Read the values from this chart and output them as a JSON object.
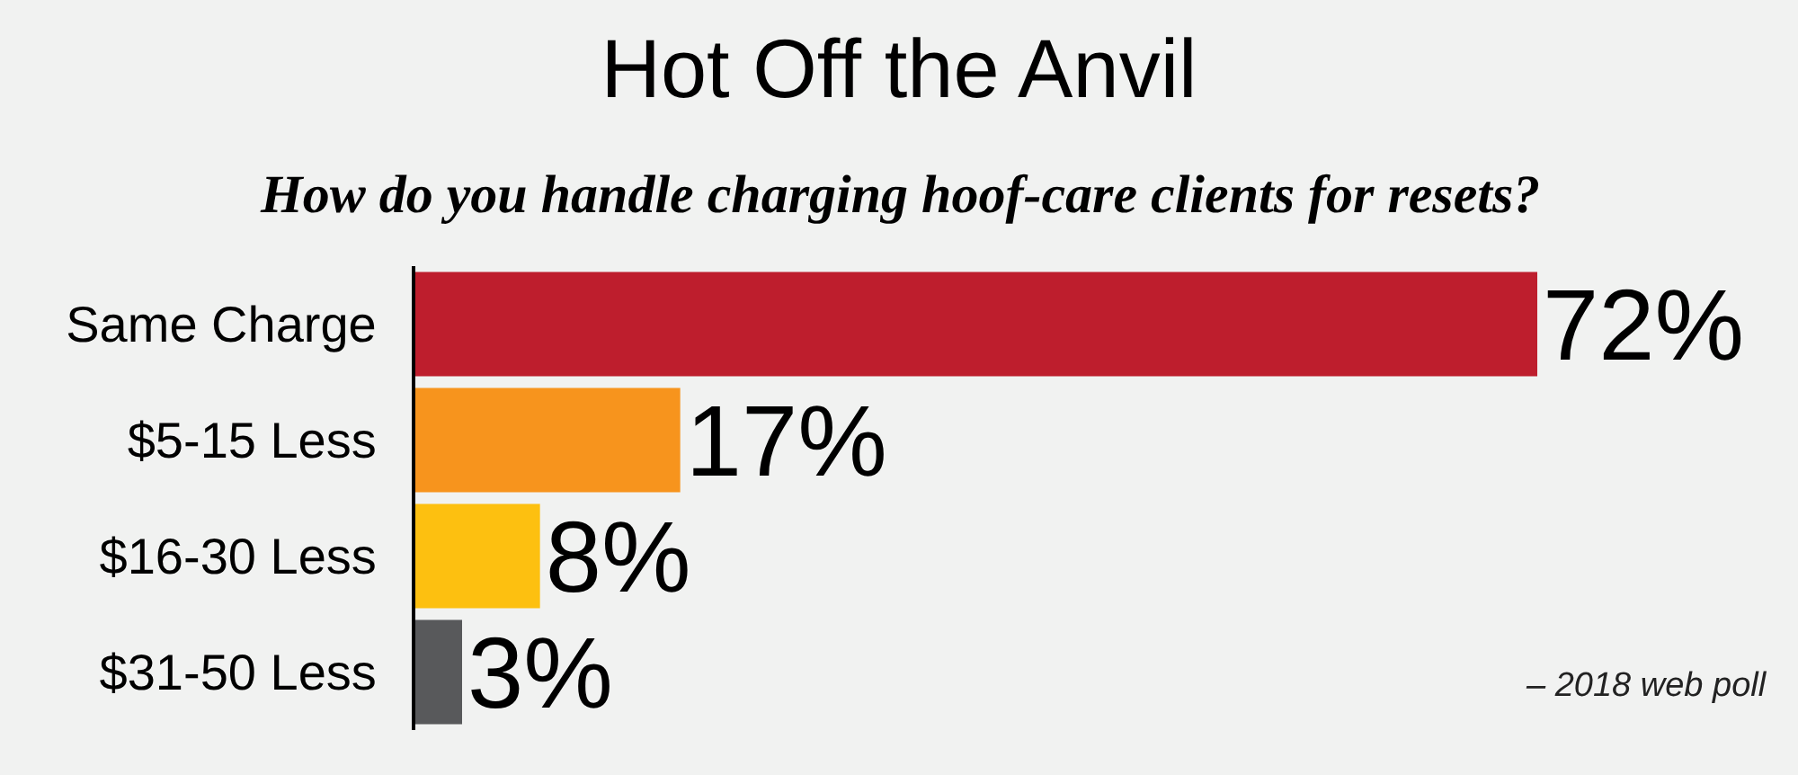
{
  "chart_data": {
    "type": "bar",
    "orientation": "horizontal",
    "title": "Hot Off the Anvil",
    "subtitle": "How do you handle charging hoof-care clients for resets?",
    "categories": [
      "Same Charge",
      "$5-15 Less",
      "$16-30 Less",
      "$31-50 Less"
    ],
    "values": [
      72,
      17,
      8,
      3
    ],
    "colors": [
      "#be1e2d",
      "#f7941d",
      "#fdc010",
      "#58595b"
    ],
    "value_labels": [
      "72%",
      "17%",
      "8%",
      "3%"
    ],
    "tick_labels": "y",
    "annotations": [
      "– 2018 web poll"
    ]
  }
}
